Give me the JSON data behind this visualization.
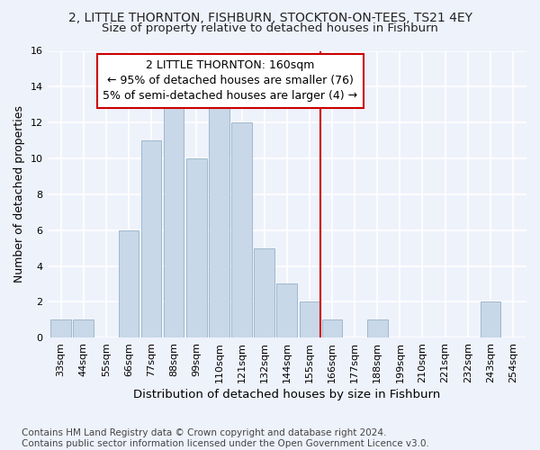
{
  "title1": "2, LITTLE THORNTON, FISHBURN, STOCKTON-ON-TEES, TS21 4EY",
  "title2": "Size of property relative to detached houses in Fishburn",
  "xlabel": "Distribution of detached houses by size in Fishburn",
  "ylabel": "Number of detached properties",
  "categories": [
    "33sqm",
    "44sqm",
    "55sqm",
    "66sqm",
    "77sqm",
    "88sqm",
    "99sqm",
    "110sqm",
    "121sqm",
    "132sqm",
    "144sqm",
    "155sqm",
    "166sqm",
    "177sqm",
    "188sqm",
    "199sqm",
    "210sqm",
    "221sqm",
    "232sqm",
    "243sqm",
    "254sqm"
  ],
  "values": [
    1,
    1,
    0,
    6,
    11,
    13,
    10,
    13,
    12,
    5,
    3,
    2,
    1,
    0,
    1,
    0,
    0,
    0,
    0,
    2,
    0
  ],
  "bar_color": "#c8d8e8",
  "bar_edge_color": "#a0b8cc",
  "background_color": "#eef2fb",
  "grid_color": "#ffffff",
  "annotation_line1": "2 LITTLE THORNTON: 160sqm",
  "annotation_line2": "← 95% of detached houses are smaller (76)",
  "annotation_line3": "5% of semi-detached houses are larger (4) →",
  "annotation_box_color": "#cc0000",
  "vline_x_index": 11.5,
  "vline_color": "#cc0000",
  "ylim": [
    0,
    16
  ],
  "yticks": [
    0,
    2,
    4,
    6,
    8,
    10,
    12,
    14,
    16
  ],
  "footnote": "Contains HM Land Registry data © Crown copyright and database right 2024.\nContains public sector information licensed under the Open Government Licence v3.0.",
  "title1_fontsize": 10,
  "title2_fontsize": 9.5,
  "xlabel_fontsize": 9.5,
  "ylabel_fontsize": 9,
  "tick_fontsize": 8,
  "annotation_fontsize": 9,
  "footnote_fontsize": 7.5
}
